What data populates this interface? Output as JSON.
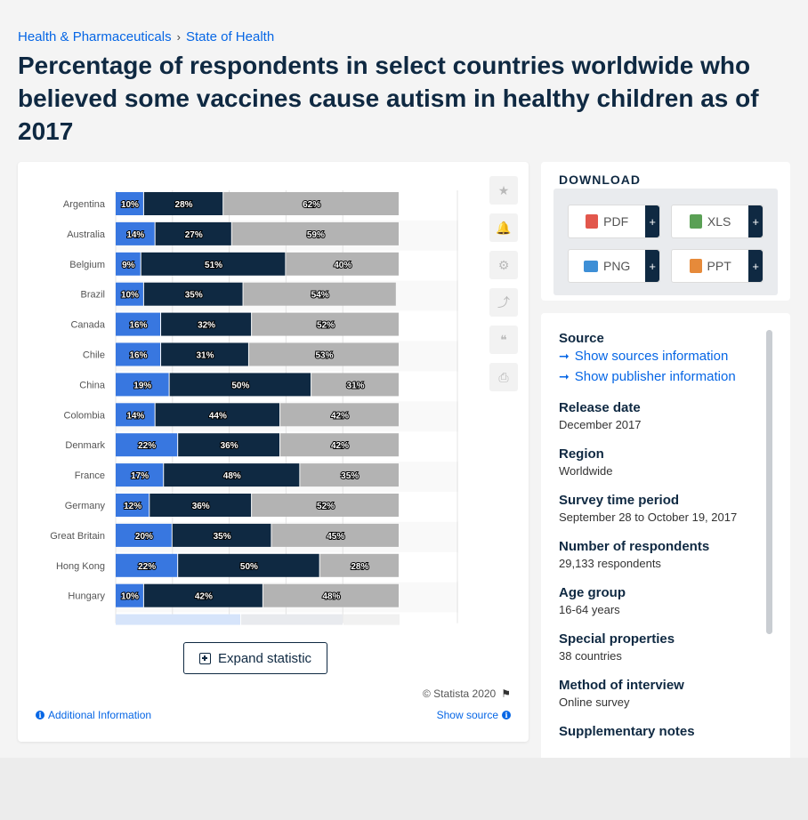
{
  "breadcrumb": {
    "items": [
      "Health & Pharmaceuticals",
      "State of Health"
    ],
    "separator": "›"
  },
  "title": "Percentage of respondents in select countries worldwide who believed some vaccines cause autism in healthy children as of 2017",
  "tools": [
    {
      "name": "favorite",
      "icon": "star-icon",
      "glyph": "★"
    },
    {
      "name": "alert",
      "icon": "bell-icon",
      "glyph": "🔔"
    },
    {
      "name": "settings",
      "icon": "gear-icon",
      "glyph": "⚙"
    },
    {
      "name": "share",
      "icon": "share-icon",
      "glyph": "⤴"
    },
    {
      "name": "cite",
      "icon": "quote-icon",
      "glyph": "❝"
    },
    {
      "name": "print",
      "icon": "print-icon",
      "glyph": "⎙"
    }
  ],
  "expand_label": "Expand statistic",
  "copyright": "© Statista 2020",
  "additional_info": "Additional Information",
  "show_source": "Show source",
  "download": {
    "title": "DOWNLOAD",
    "formats": [
      "PDF",
      "XLS",
      "PNG",
      "PPT"
    ],
    "plus": "+"
  },
  "meta": {
    "source_label": "Source",
    "source_links": [
      "Show sources information",
      "Show publisher information"
    ],
    "fields": [
      {
        "label": "Release date",
        "value": "December 2017"
      },
      {
        "label": "Region",
        "value": "Worldwide"
      },
      {
        "label": "Survey time period",
        "value": "September 28 to October 19, 2017"
      },
      {
        "label": "Number of respondents",
        "value": "29,133 respondents"
      },
      {
        "label": "Age group",
        "value": "16-64 years"
      },
      {
        "label": "Special properties",
        "value": "38 countries"
      },
      {
        "label": "Method of interview",
        "value": "Online survey"
      },
      {
        "label": "Supplementary notes",
        "value": ""
      }
    ]
  },
  "colors": {
    "series1": "#3877e0",
    "series2": "#0f2942",
    "series3": "#b3b3b3",
    "accent": "#0666e5"
  },
  "chart_data": {
    "type": "bar",
    "orientation": "horizontal",
    "stacked": true,
    "categories": [
      "Argentina",
      "Australia",
      "Belgium",
      "Brazil",
      "Canada",
      "Chile",
      "China",
      "Colombia",
      "Denmark",
      "France",
      "Germany",
      "Great Britain",
      "Hong Kong",
      "Hungary"
    ],
    "series": [
      {
        "values": [
          10,
          14,
          9,
          10,
          16,
          16,
          19,
          14,
          22,
          17,
          12,
          20,
          22,
          10
        ]
      },
      {
        "values": [
          28,
          27,
          51,
          35,
          32,
          31,
          50,
          44,
          36,
          48,
          36,
          35,
          50,
          42
        ]
      },
      {
        "values": [
          62,
          59,
          40,
          54,
          52,
          53,
          31,
          42,
          42,
          35,
          52,
          45,
          28,
          48
        ]
      }
    ],
    "value_suffix": "%",
    "xlim": [
      0,
      100
    ],
    "grid": true
  }
}
